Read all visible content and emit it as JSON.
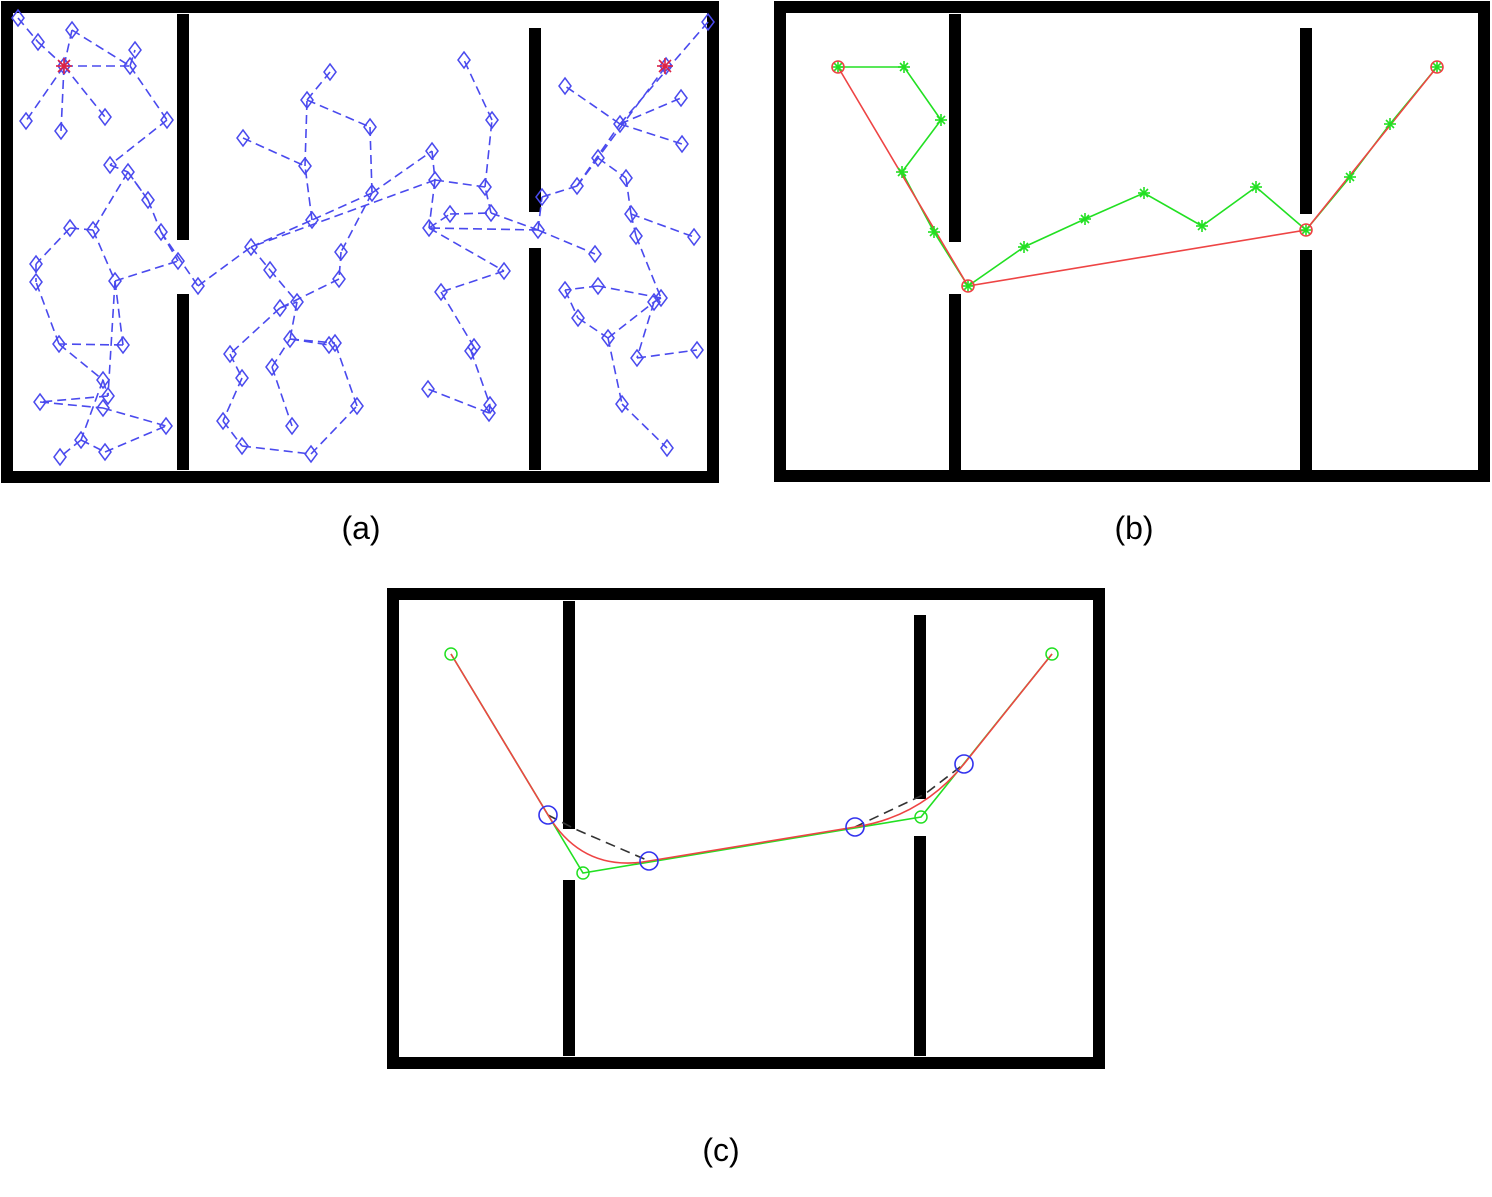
{
  "panels": [
    {
      "id": "a",
      "caption": "(a)"
    },
    {
      "id": "b",
      "caption": "(b)"
    },
    {
      "id": "c",
      "caption": "(c)"
    }
  ],
  "colors": {
    "wall": "#000000",
    "sample_graph": "#4a4aee",
    "search_path": "#22e022",
    "shortcut_path": "#ee4444",
    "control_polygon": "#333333",
    "bezier_control": "#3333ee",
    "start_goal_marker": "#dd2244"
  },
  "icons": [
    "diamond-marker",
    "asterisk-marker",
    "circle-marker",
    "star-marker"
  ]
}
